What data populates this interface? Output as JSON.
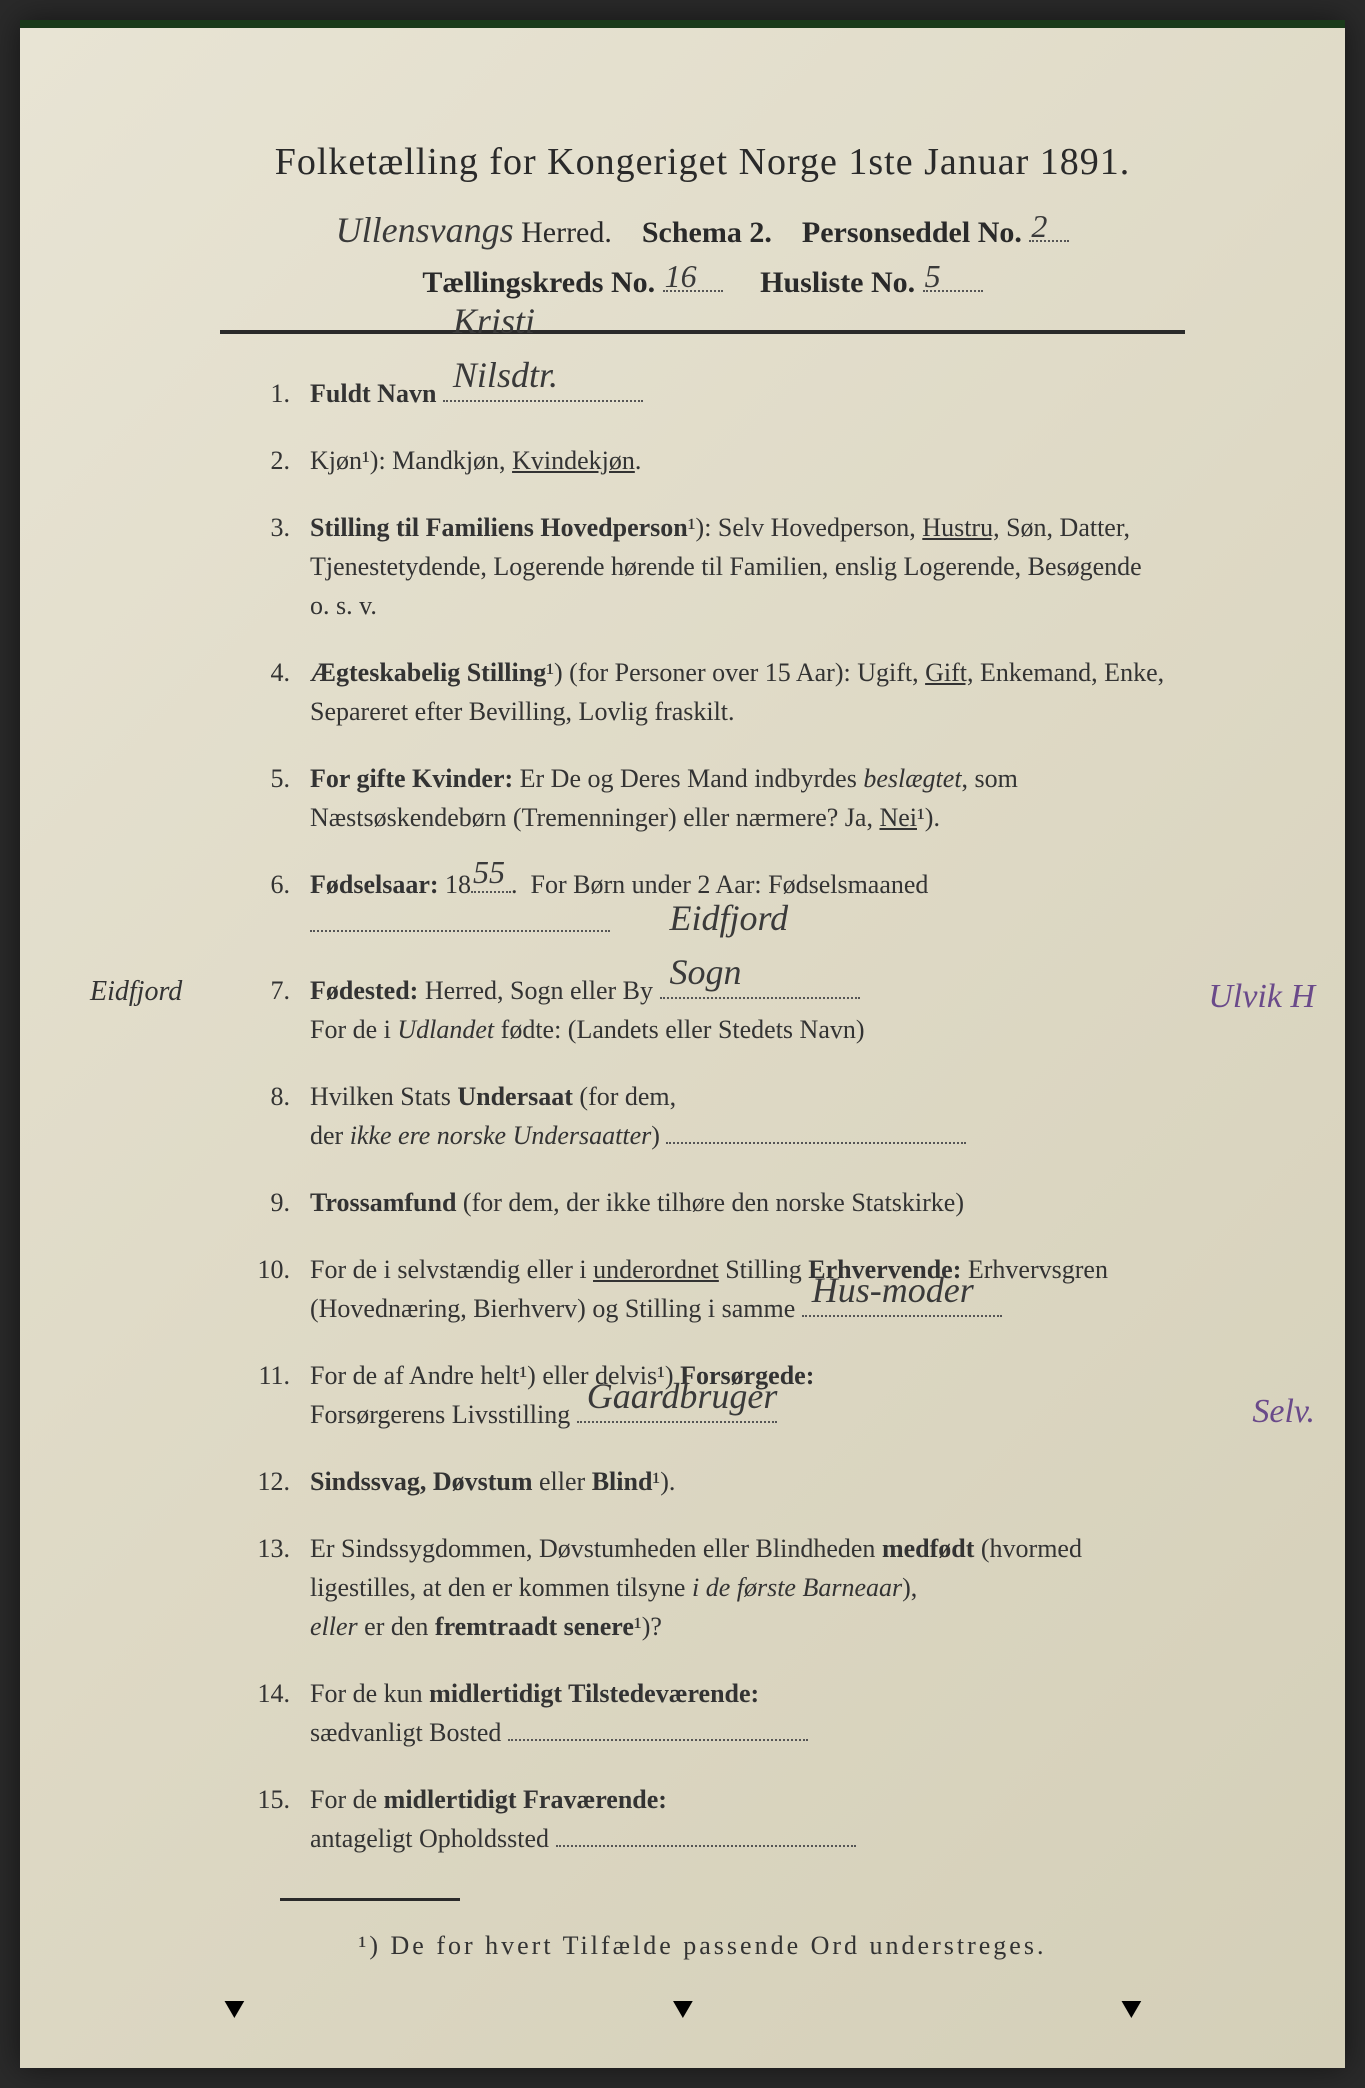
{
  "title": "Folketælling for Kongeriget Norge 1ste Januar 1891.",
  "header": {
    "herred_hw": "Ullensvangs",
    "herred_label": "Herred.",
    "schema": "Schema 2.",
    "personseddel": "Personseddel No.",
    "personseddel_no": "2",
    "tkreds_label": "Tællingskreds No.",
    "tkreds_no": "16",
    "husliste_label": "Husliste No.",
    "husliste_no": "5"
  },
  "items": [
    {
      "num": "1.",
      "body_prefix": "Fuldt Navn",
      "hw_after": "Kristi Nilsdtr."
    },
    {
      "num": "2.",
      "body": "Kjøn¹): Mandkjøn, <u>Kvindekjøn</u>."
    },
    {
      "num": "3.",
      "body": "<b>Stilling til Familiens Hovedperson</b>¹): Selv Hovedperson, <u>Hustru,</u> Søn, Datter, Tjenestetydende, Logerende hørende til Familien, enslig Logerende, Besøgende<br>o. s. v."
    },
    {
      "num": "4.",
      "body": "<b>Ægteskabelig Stilling</b>¹) (for Personer over 15 Aar): Ugift, <u>Gift,</u> Enkemand, Enke, Separeret efter Bevilling, Lovlig fraskilt."
    },
    {
      "num": "5.",
      "body": "<b>For gifte Kvinder:</b> Er De og Deres Mand indbyrdes <i>beslægtet</i>, som Næstsøskendebørn (Tremenninger) eller nærmere? Ja, <u>Nei</u>¹)."
    },
    {
      "num": "6.",
      "body_prefix": "Fødselsaar: 18",
      "hw_inline": "55",
      "body_suffix": ".&nbsp;&nbsp;For Børn under 2 Aar: Fødselsmaaned",
      "trailing_dots": true
    },
    {
      "num": "7.",
      "body_prefix": "Fødested: Herred, Sogn eller By",
      "hw_after": "Eidfjord Sogn",
      "margin_note": "Eidfjord",
      "right_note": "Ulvik H",
      "body_line2": "For de i <i>Udlandet</i> fødte: (Landets eller Stedets Navn)"
    },
    {
      "num": "8.",
      "body": "Hvilken Stats <b>Undersaat</b> (for dem,<br>der <i>ikke ere norske Undersaatter</i>)",
      "trailing_dots": true
    },
    {
      "num": "9.",
      "body": "<b>Trossamfund</b> (for dem, der ikke tilhøre den norske Statskirke)"
    },
    {
      "num": "10.",
      "body_prefix": "For de i selvstændig eller i <u>underordnet</u> Stilling <b>Erhvervende:</b> Erhvervsgren (Hovednæring, Bierhverv) og Stilling i samme",
      "hw_after": "Hus-moder"
    },
    {
      "num": "11.",
      "body_prefix": "For de af Andre helt¹) eller delvis¹) <b>Forsørgede:</b><br>Forsørgerens Livsstilling",
      "hw_after": "Gaardbruger",
      "right_note": "Selv."
    },
    {
      "num": "12.",
      "body": "<b>Sindssvag, Døvstum</b> eller <b>Blind</b>¹)."
    },
    {
      "num": "13.",
      "body": "Er Sindssygdommen, Døvstumheden eller Blindheden <b>medfødt</b> (hvormed ligestilles, at den er kommen tilsyne <i>i de første Barneaar</i>),<br><i>eller</i> er den <b>fremtraadt senere</b>¹)?"
    },
    {
      "num": "14.",
      "body": "For de kun <b>midlertidigt Tilstedeværende:</b><br>sædvanligt Bosted",
      "trailing_dots": true
    },
    {
      "num": "15.",
      "body": "For de <b>midlertidigt Fraværende:</b><br>antageligt Opholdssted",
      "trailing_dots": true
    }
  ],
  "footnote": "¹) De for hvert Tilfælde passende Ord understreges."
}
